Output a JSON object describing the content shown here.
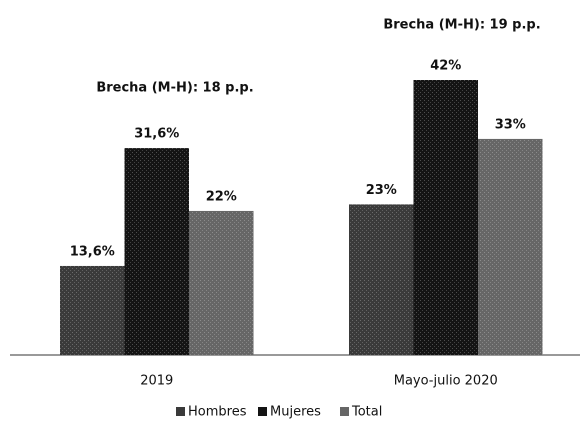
{
  "chart_data": {
    "type": "bar",
    "categories": [
      "2019",
      "Mayo-julio 2020"
    ],
    "series": [
      {
        "name": "Hombres",
        "color": "#3a3a3a",
        "values": [
          13.6,
          23
        ],
        "value_labels": [
          "13,6%",
          "23%"
        ]
      },
      {
        "name": "Mujeres",
        "color": "#141414",
        "values": [
          31.6,
          42
        ],
        "value_labels": [
          "31,6%",
          "42%"
        ]
      },
      {
        "name": "Total",
        "color": "#666666",
        "values": [
          22,
          33
        ],
        "value_labels": [
          "22%",
          "33%"
        ]
      }
    ],
    "annotations": [
      "Brecha (M-H): 18 p.p.",
      "Brecha (M-H): 19 p.p."
    ],
    "legend": "bottom"
  }
}
